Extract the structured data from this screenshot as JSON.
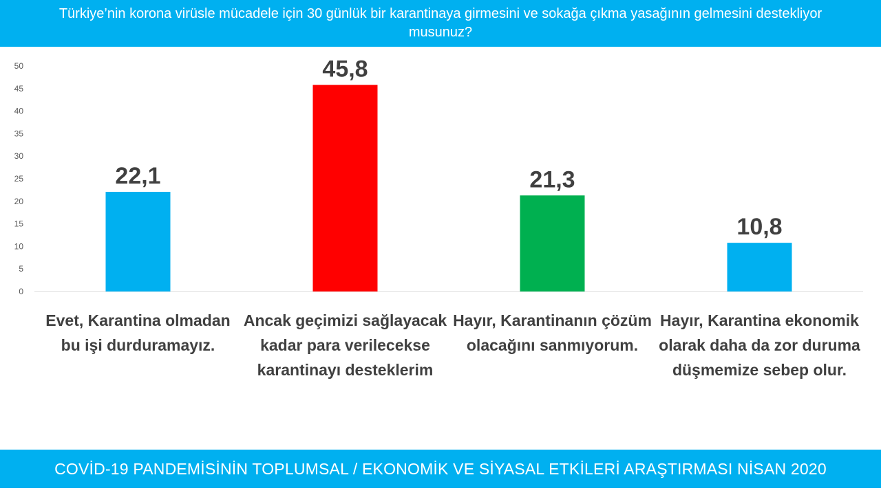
{
  "header": {
    "title": "Türkiye’nin korona virüsle mücadele için 30 günlük bir karantinaya girmesini ve sokağa çıkma yasağının gelmesini destekliyor musunuz?"
  },
  "footer": {
    "text": "COVİD-19 PANDEMİSİNİN TOPLUMSAL / EKONOMİK VE SİYASAL ETKİLERİ ARAŞTIRMASI NİSAN 2020"
  },
  "chart_data": {
    "type": "bar",
    "categories": [
      "Evet, Karantina olmadan bu işi durduramayız.",
      "Ancak geçimizi sağlayacak kadar para verilecekse karantinayı desteklerim",
      "Hayır, Karantinanın çözüm olacağını sanmıyorum.",
      "Hayır, Karantina ekonomik olarak daha da zor duruma düşmemize sebep olur."
    ],
    "values": [
      22.1,
      45.8,
      21.3,
      10.8
    ],
    "value_labels": [
      "22,1",
      "45,8",
      "21,3",
      "10,8"
    ],
    "colors": [
      "#00b0f0",
      "#ff0000",
      "#00b050",
      "#00b0f0"
    ],
    "ylim": [
      0,
      50
    ],
    "yticks": [
      0,
      5,
      10,
      15,
      20,
      25,
      30,
      35,
      40,
      45,
      50
    ],
    "grid": false,
    "legend": "none",
    "title": "",
    "xlabel": "",
    "ylabel": ""
  }
}
